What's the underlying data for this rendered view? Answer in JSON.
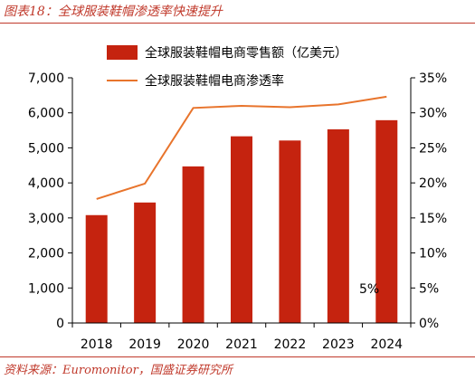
{
  "figure": {
    "title": "图表18：全球服装鞋帽渗透率快速提升",
    "source": "资料来源：Euromonitor，国盛证券研究所"
  },
  "colors": {
    "bar": "#c5230f",
    "line": "#e8742c",
    "title": "#c0392b",
    "axis": "#000000"
  },
  "chart_data": {
    "type": "bar",
    "categories": [
      "2018",
      "2019",
      "2020",
      "2021",
      "2022",
      "2023",
      "2024"
    ],
    "series": [
      {
        "name": "全球服装鞋帽电商零售额（亿美元）",
        "type": "bar",
        "axis": "left",
        "values": [
          3080,
          3440,
          4470,
          5330,
          5210,
          5530,
          5790
        ]
      },
      {
        "name": "全球服装鞋帽电商渗透率",
        "type": "line",
        "axis": "right",
        "values": [
          17.7,
          19.9,
          30.7,
          31.0,
          30.8,
          31.2,
          32.3
        ]
      }
    ],
    "y_left": {
      "ticks": [
        "0",
        "1,000",
        "2,000",
        "3,000",
        "4,000",
        "5,000",
        "6,000",
        "7,000"
      ],
      "lim": [
        0,
        7000
      ]
    },
    "y_right": {
      "ticks": [
        "0%",
        "5%",
        "10%",
        "15%",
        "20%",
        "25%",
        "30%",
        "35%"
      ],
      "lim": [
        0,
        35
      ]
    },
    "annotation": "5%",
    "legend_position": "top",
    "grid": false
  }
}
